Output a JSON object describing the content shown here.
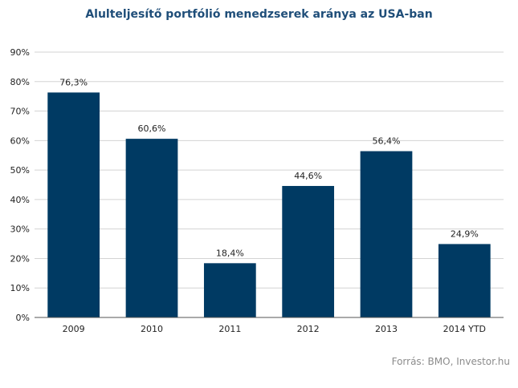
{
  "chart_data": {
    "type": "bar",
    "title": "Alulteljesítő portfólió menedzserek aránya az USA-ban",
    "categories": [
      "2009",
      "2010",
      "2011",
      "2012",
      "2013",
      "2014 YTD"
    ],
    "values": [
      76.3,
      60.6,
      18.4,
      44.6,
      56.4,
      24.9
    ],
    "value_labels": [
      "76,3%",
      "60,6%",
      "18,4%",
      "44,6%",
      "56,4%",
      "24,9%"
    ],
    "ylim": [
      0,
      90
    ],
    "yticks": [
      "0%",
      "10%",
      "20%",
      "30%",
      "40%",
      "50%",
      "60%",
      "70%",
      "80%",
      "90%"
    ],
    "grid": true,
    "bar_color": "#003a63",
    "source": "Forrás: BMO, Investor.hu"
  }
}
